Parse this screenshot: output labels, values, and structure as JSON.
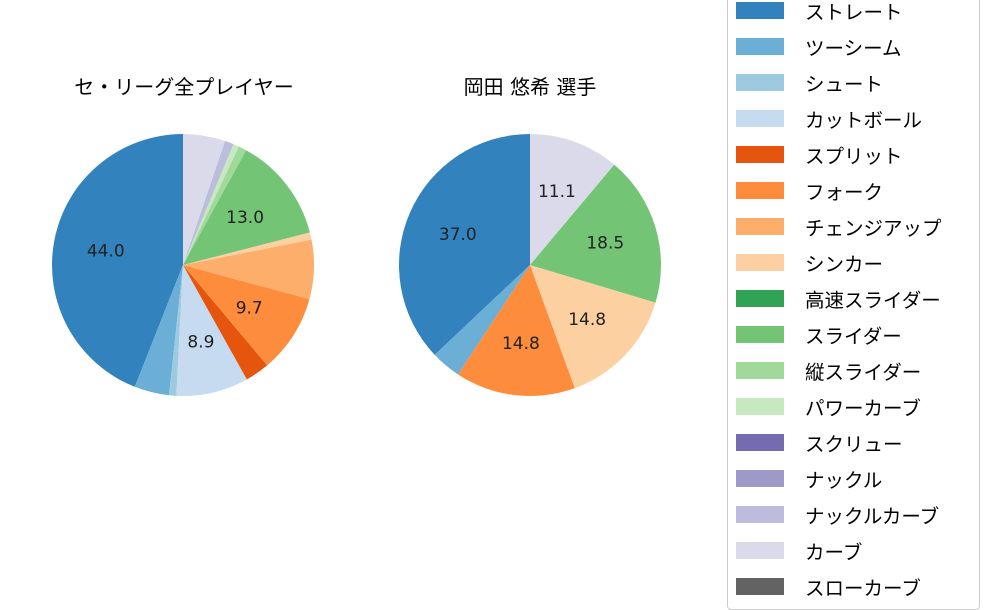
{
  "chart_data": [
    {
      "type": "pie",
      "title": "セ・リーグ全プレイヤー",
      "center": [
        183,
        265
      ],
      "radius": 131,
      "categories": [
        "ストレート",
        "ツーシーム",
        "シュート",
        "カットボール",
        "スプリット",
        "フォーク",
        "チェンジアップ",
        "シンカー",
        "高速スライダー",
        "スライダー",
        "縦スライダー",
        "パワーカーブ",
        "スクリュー",
        "ナックル",
        "ナックルカーブ",
        "カーブ",
        "スローカーブ"
      ],
      "values": [
        44.0,
        4.3,
        0.9,
        8.9,
        3.0,
        9.7,
        7.3,
        0.9,
        0,
        13.0,
        1.0,
        0.7,
        0,
        0,
        1.1,
        5.2,
        0
      ],
      "labels_shown": [
        "44.0",
        "8.9",
        "9.7",
        "13.0"
      ],
      "start_angle": 90,
      "direction": "counterclockwise"
    },
    {
      "type": "pie",
      "title": "岡田 悠希  選手",
      "center": [
        530,
        265
      ],
      "radius": 131,
      "categories": [
        "ストレート",
        "ツーシーム",
        "シュート",
        "カットボール",
        "スプリット",
        "フォーク",
        "チェンジアップ",
        "シンカー",
        "高速スライダー",
        "スライダー",
        "縦スライダー",
        "パワーカーブ",
        "スクリュー",
        "ナックル",
        "ナックルカーブ",
        "カーブ",
        "スローカーブ"
      ],
      "values": [
        37.0,
        3.7,
        0,
        0,
        0,
        14.8,
        0,
        14.8,
        0,
        18.5,
        0,
        0,
        0,
        0,
        0,
        11.1,
        0
      ],
      "labels_shown": [
        "37.0",
        "14.8",
        "14.8",
        "18.5",
        "11.1"
      ],
      "start_angle": 90,
      "direction": "counterclockwise"
    }
  ],
  "titles": {
    "left": "セ・リーグ全プレイヤー",
    "right": "岡田 悠希  選手"
  },
  "legend": {
    "position": "right",
    "items": [
      {
        "label": "ストレート",
        "color": "#3182bd"
      },
      {
        "label": "ツーシーム",
        "color": "#6baed6"
      },
      {
        "label": "シュート",
        "color": "#9ecae1"
      },
      {
        "label": "カットボール",
        "color": "#c6dbef"
      },
      {
        "label": "スプリット",
        "color": "#e6550d"
      },
      {
        "label": "フォーク",
        "color": "#fd8d3c"
      },
      {
        "label": "チェンジアップ",
        "color": "#fdae6b"
      },
      {
        "label": "シンカー",
        "color": "#fdd0a2"
      },
      {
        "label": "高速スライダー",
        "color": "#31a354"
      },
      {
        "label": "スライダー",
        "color": "#74c476"
      },
      {
        "label": "縦スライダー",
        "color": "#a1d99b"
      },
      {
        "label": "パワーカーブ",
        "color": "#c7e9c0"
      },
      {
        "label": "スクリュー",
        "color": "#756bb1"
      },
      {
        "label": "ナックル",
        "color": "#9e9ac8"
      },
      {
        "label": "ナックルカーブ",
        "color": "#bcbddc"
      },
      {
        "label": "カーブ",
        "color": "#dadaeb"
      },
      {
        "label": "スローカーブ",
        "color": "#636363"
      }
    ]
  }
}
